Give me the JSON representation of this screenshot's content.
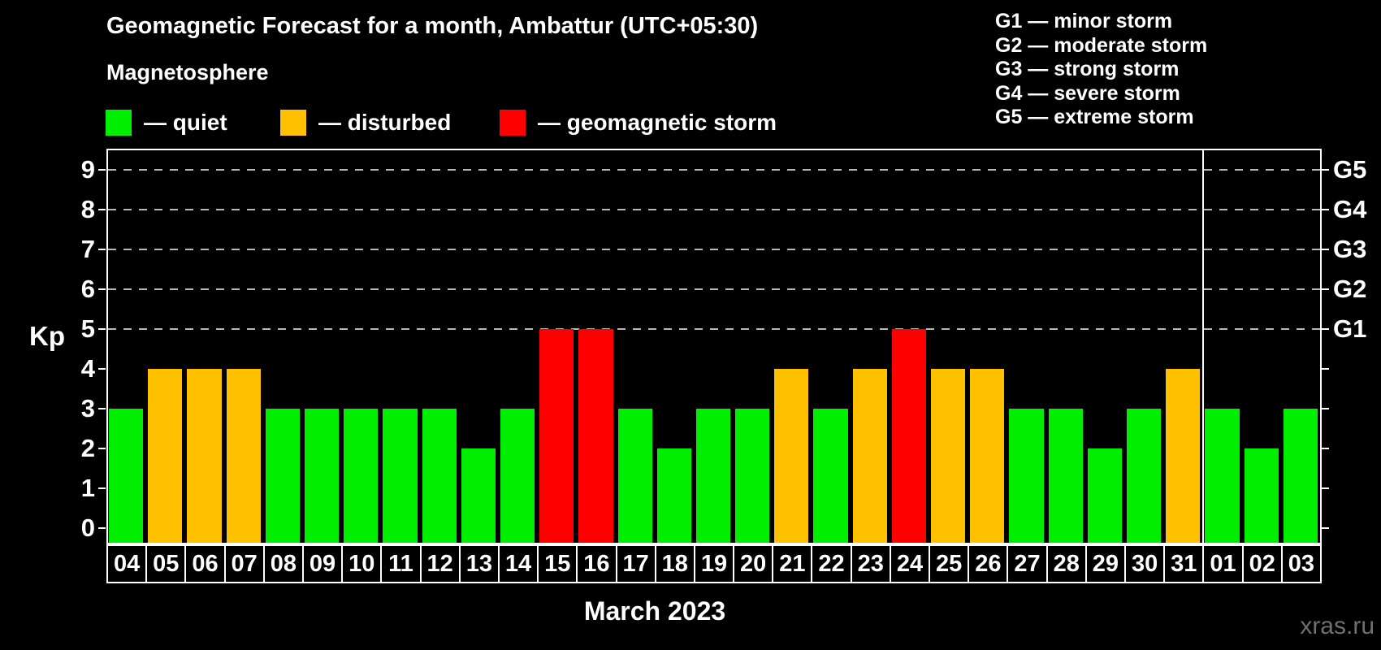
{
  "header": {
    "title": "Geomagnetic Forecast for a month, Ambattur (UTC+05:30)",
    "subtitle": "Magnetosphere"
  },
  "legend": {
    "items": [
      {
        "label": "— quiet",
        "status": "quiet",
        "color": "#00ee00"
      },
      {
        "label": "— disturbed",
        "status": "disturbed",
        "color": "#ffc000"
      },
      {
        "label": "— geomagnetic storm",
        "status": "storm",
        "color": "#ff0000"
      }
    ]
  },
  "g_legend": {
    "items": [
      "G1 — minor storm",
      "G2 — moderate storm",
      "G3 — strong storm",
      "G4 — severe storm",
      "G5 — extreme storm"
    ]
  },
  "axes": {
    "y_label": "Kp",
    "y_ticks": [
      "0",
      "1",
      "2",
      "3",
      "4",
      "5",
      "6",
      "7",
      "8",
      "9"
    ],
    "right_labels": [
      {
        "label": "G1",
        "kp": 5
      },
      {
        "label": "G2",
        "kp": 6
      },
      {
        "label": "G3",
        "kp": 7
      },
      {
        "label": "G4",
        "kp": 8
      },
      {
        "label": "G5",
        "kp": 9
      }
    ]
  },
  "chart_data": {
    "type": "bar",
    "title": "Geomagnetic Forecast for a month, Ambattur (UTC+05:30)",
    "xlabel": "March 2023",
    "ylabel": "Kp",
    "ylim": [
      0,
      9
    ],
    "grid": "dashed horizontal lines at Kp 5,6,7,8,9 (G1–G5)",
    "legend_position": "top",
    "categories": [
      "04",
      "05",
      "06",
      "07",
      "08",
      "09",
      "10",
      "11",
      "12",
      "13",
      "14",
      "15",
      "16",
      "17",
      "18",
      "19",
      "20",
      "21",
      "22",
      "23",
      "24",
      "25",
      "26",
      "27",
      "28",
      "29",
      "30",
      "31",
      "01",
      "02",
      "03"
    ],
    "values": [
      3,
      4,
      4,
      4,
      3,
      3,
      3,
      3,
      3,
      2,
      3,
      5,
      5,
      3,
      2,
      3,
      3,
      4,
      3,
      4,
      5,
      4,
      4,
      3,
      3,
      2,
      3,
      4,
      3,
      2,
      3
    ],
    "statuses": [
      "quiet",
      "disturbed",
      "disturbed",
      "disturbed",
      "quiet",
      "quiet",
      "quiet",
      "quiet",
      "quiet",
      "quiet",
      "quiet",
      "storm",
      "storm",
      "quiet",
      "quiet",
      "quiet",
      "quiet",
      "disturbed",
      "quiet",
      "disturbed",
      "storm",
      "disturbed",
      "disturbed",
      "quiet",
      "quiet",
      "quiet",
      "quiet",
      "disturbed",
      "quiet",
      "quiet",
      "quiet"
    ],
    "month_boundary_after_index": 27
  },
  "footer": {
    "caption": "March 2023",
    "watermark": "xras.ru"
  },
  "colors": {
    "quiet": "#00ee00",
    "disturbed": "#ffc000",
    "storm": "#ff0000",
    "background": "#000000",
    "axis": "#ffffff",
    "grid": "#b8b8b8",
    "watermark": "#707070"
  }
}
